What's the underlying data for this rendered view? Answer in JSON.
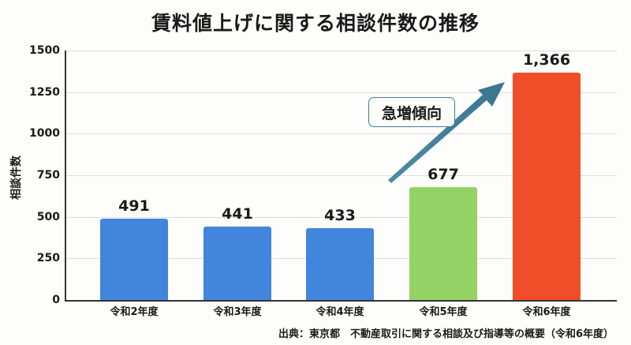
{
  "title": "賃料値上げに関する相談件数の推移",
  "y_axis": {
    "label": "相談件数",
    "ticks": [
      "0",
      "250",
      "500",
      "750",
      "1000",
      "1250",
      "1500"
    ]
  },
  "bars": [
    {
      "category": "令和2年度",
      "value": 491,
      "value_label": "491",
      "color": "#4285dc"
    },
    {
      "category": "令和3年度",
      "value": 441,
      "value_label": "441",
      "color": "#4285dc"
    },
    {
      "category": "令和4年度",
      "value": 433,
      "value_label": "433",
      "color": "#4285dc"
    },
    {
      "category": "令和5年度",
      "value": 677,
      "value_label": "677",
      "color": "#95d266"
    },
    {
      "category": "令和6年度",
      "value": 1366,
      "value_label": "1,366",
      "color": "#f04e28"
    }
  ],
  "annotation": {
    "text": "急増傾向",
    "arrow_color": "#3f7c93"
  },
  "source": "出典：東京都　不動産取引に関する相談及び指導等の概要（令和6年度）",
  "chart_data": {
    "type": "bar",
    "title": "賃料値上げに関する相談件数の推移",
    "categories": [
      "令和2年度",
      "令和3年度",
      "令和4年度",
      "令和5年度",
      "令和6年度"
    ],
    "values": [
      491,
      441,
      433,
      677,
      1366
    ],
    "data_labels": [
      "491",
      "441",
      "433",
      "677",
      "1,366"
    ],
    "xlabel": "",
    "ylabel": "相談件数",
    "ylim": [
      0,
      1500
    ],
    "yticks": [
      0,
      250,
      500,
      750,
      1000,
      1250,
      1500
    ],
    "grid": true,
    "legend": null,
    "bar_colors": [
      "#4285dc",
      "#4285dc",
      "#4285dc",
      "#95d266",
      "#f04e28"
    ],
    "annotations": [
      {
        "text": "急増傾向",
        "type": "callout with upward arrow from 令和5年度 toward 令和6年度"
      }
    ],
    "source": "出典：東京都　不動産取引に関する相談及び指導等の概要（令和6年度）"
  }
}
